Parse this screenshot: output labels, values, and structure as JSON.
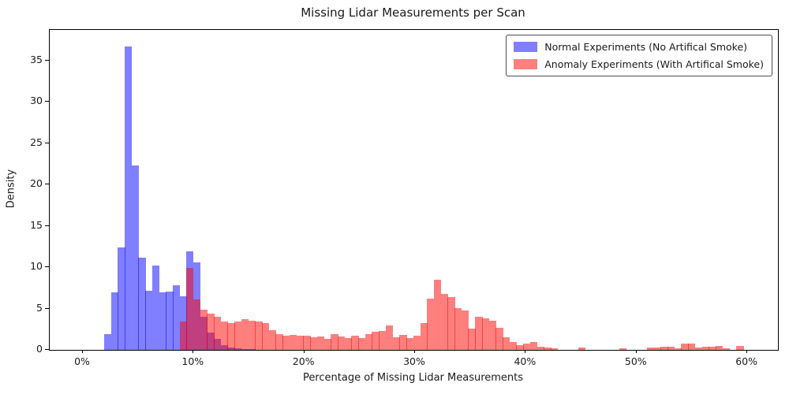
{
  "figure": {
    "title": "Missing Lidar Measurements per Scan",
    "xlabel": "Percentage of Missing Lidar Measurements",
    "ylabel": "Density"
  },
  "chart_data": {
    "type": "bar",
    "subtype": "overlaid-histogram",
    "title": "Missing Lidar Measurements per Scan",
    "xlabel": "Percentage of Missing Lidar Measurements",
    "ylabel": "Density",
    "grid": false,
    "legend_position": "upper right",
    "axes": {
      "x_min_pct": -2.99,
      "x_max_pct": 62.77,
      "y_min": 0,
      "y_max": 38.72,
      "x_tick_values": [
        0,
        10,
        20,
        30,
        40,
        50,
        60
      ],
      "x_tick_labels": [
        "0%",
        "10%",
        "20%",
        "30%",
        "40%",
        "50%",
        "60%"
      ],
      "y_tick_values": [
        0,
        5,
        10,
        15,
        20,
        25,
        30,
        35
      ],
      "y_tick_labels": [
        "0",
        "5",
        "10",
        "15",
        "20",
        "25",
        "30",
        "35"
      ]
    },
    "bin_width_pct": 0.62,
    "series": [
      {
        "name": "Normal Experiments (No Artifical Smoke)",
        "fill": "rgba(0,0,255,0.5)",
        "legend_color": "#7f7fff",
        "bins": [
          [
            1.92,
            1.95
          ],
          [
            2.54,
            7.0
          ],
          [
            3.16,
            12.4
          ],
          [
            3.78,
            36.7
          ],
          [
            4.4,
            22.3
          ],
          [
            5.02,
            11.2
          ],
          [
            5.64,
            7.2
          ],
          [
            6.26,
            10.2
          ],
          [
            6.88,
            7.0
          ],
          [
            7.5,
            7.1
          ],
          [
            8.12,
            7.8
          ],
          [
            8.73,
            6.5
          ],
          [
            9.35,
            11.9
          ],
          [
            9.97,
            10.6
          ],
          [
            10.59,
            4.0
          ],
          [
            11.21,
            2.1
          ],
          [
            11.83,
            1.3
          ],
          [
            12.45,
            0.6
          ],
          [
            13.07,
            0.3
          ],
          [
            13.69,
            0.2
          ],
          [
            14.31,
            0.12
          ],
          [
            14.94,
            0.1
          ]
        ]
      },
      {
        "name": "Anomaly Experiments (With Artifical Smoke)",
        "fill": "rgba(255,0,0,0.5)",
        "legend_color": "#ff7f7f",
        "bins": [
          [
            8.73,
            3.4
          ],
          [
            9.35,
            9.9
          ],
          [
            9.97,
            6.1
          ],
          [
            10.59,
            4.9
          ],
          [
            11.21,
            4.4
          ],
          [
            11.83,
            4.0
          ],
          [
            12.45,
            3.4
          ],
          [
            13.07,
            3.2
          ],
          [
            13.69,
            3.4
          ],
          [
            14.31,
            3.7
          ],
          [
            14.94,
            3.5
          ],
          [
            15.56,
            3.4
          ],
          [
            16.18,
            3.2
          ],
          [
            16.8,
            2.4
          ],
          [
            17.42,
            1.9
          ],
          [
            18.04,
            1.7
          ],
          [
            18.66,
            1.8
          ],
          [
            19.28,
            1.7
          ],
          [
            19.9,
            1.7
          ],
          [
            20.52,
            1.5
          ],
          [
            21.14,
            1.6
          ],
          [
            21.77,
            1.3
          ],
          [
            22.39,
            1.9
          ],
          [
            23.01,
            1.6
          ],
          [
            23.63,
            1.4
          ],
          [
            24.25,
            1.7
          ],
          [
            24.87,
            1.4
          ],
          [
            25.49,
            1.9
          ],
          [
            26.11,
            2.2
          ],
          [
            26.73,
            2.3
          ],
          [
            27.35,
            3.0
          ],
          [
            27.97,
            1.5
          ],
          [
            28.6,
            1.8
          ],
          [
            29.22,
            1.4
          ],
          [
            29.84,
            1.7
          ],
          [
            30.46,
            3.2
          ],
          [
            31.08,
            6.2
          ],
          [
            31.7,
            8.5
          ],
          [
            32.32,
            6.8
          ],
          [
            32.94,
            6.4
          ],
          [
            33.56,
            5.1
          ],
          [
            34.18,
            4.8
          ],
          [
            34.8,
            2.6
          ],
          [
            35.43,
            4.0
          ],
          [
            36.05,
            3.8
          ],
          [
            36.67,
            3.5
          ],
          [
            37.29,
            2.7
          ],
          [
            37.91,
            1.5
          ],
          [
            38.53,
            1.0
          ],
          [
            39.15,
            0.6
          ],
          [
            39.77,
            0.8
          ],
          [
            40.39,
            1.0
          ],
          [
            41.01,
            0.4
          ],
          [
            41.63,
            0.3
          ],
          [
            42.26,
            0.15
          ],
          [
            44.74,
            0.3
          ],
          [
            48.46,
            0.2
          ],
          [
            50.94,
            0.3
          ],
          [
            51.56,
            0.3
          ],
          [
            52.18,
            0.35
          ],
          [
            52.8,
            0.35
          ],
          [
            53.42,
            0.2
          ],
          [
            54.04,
            0.75
          ],
          [
            54.66,
            0.8
          ],
          [
            55.28,
            0.3
          ],
          [
            55.9,
            0.35
          ],
          [
            56.52,
            0.35
          ],
          [
            57.14,
            0.45
          ],
          [
            57.77,
            0.2
          ],
          [
            59.01,
            0.45
          ]
        ]
      }
    ]
  }
}
